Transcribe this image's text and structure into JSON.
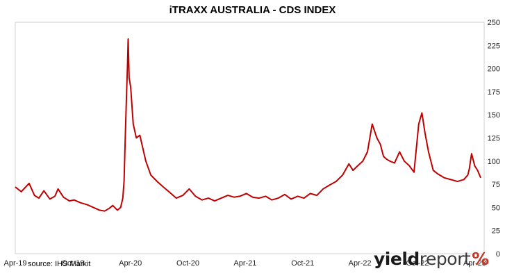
{
  "chart_data": {
    "type": "line",
    "title": "iTRAXX AUSTRALIA - CDS INDEX",
    "xlabel": "",
    "ylabel": "",
    "ylim": [
      0,
      250
    ],
    "y_ticks": [
      0,
      25,
      50,
      75,
      100,
      125,
      150,
      175,
      200,
      225,
      250
    ],
    "y_axis_side": "right",
    "x_range": [
      "2019-04-01",
      "2023-05-01"
    ],
    "x_ticks": [
      {
        "date": "2019-04-01",
        "label": "Apr-19"
      },
      {
        "date": "2019-10-01",
        "label": "Oct-19"
      },
      {
        "date": "2020-04-01",
        "label": "Apr-20"
      },
      {
        "date": "2020-10-01",
        "label": "Oct-20"
      },
      {
        "date": "2021-04-01",
        "label": "Apr-21"
      },
      {
        "date": "2021-10-01",
        "label": "Oct-21"
      },
      {
        "date": "2022-04-01",
        "label": "Apr-22"
      },
      {
        "date": "2022-10-01",
        "label": "Oct-22"
      },
      {
        "date": "2023-04-01",
        "label": "Apr-23"
      }
    ],
    "grid": false,
    "series_color": "#c00000",
    "series": [
      {
        "x": [
          "2019-04-01",
          "2019-04-20",
          "2019-05-15",
          "2019-06-01",
          "2019-06-15",
          "2019-07-01",
          "2019-07-20",
          "2019-08-05",
          "2019-08-15",
          "2019-09-01",
          "2019-09-20",
          "2019-10-05",
          "2019-10-25",
          "2019-11-15",
          "2019-12-05",
          "2019-12-25",
          "2020-01-10",
          "2020-01-25",
          "2020-02-05",
          "2020-02-20",
          "2020-03-01",
          "2020-03-08",
          "2020-03-12",
          "2020-03-16",
          "2020-03-20",
          "2020-03-23",
          "2020-03-25",
          "2020-03-28",
          "2020-04-02",
          "2020-04-10",
          "2020-04-20",
          "2020-05-01",
          "2020-05-20",
          "2020-06-05",
          "2020-06-25",
          "2020-07-15",
          "2020-08-05",
          "2020-08-25",
          "2020-09-15",
          "2020-10-05",
          "2020-10-25",
          "2020-11-15",
          "2020-12-05",
          "2020-12-25",
          "2021-01-15",
          "2021-02-05",
          "2021-02-25",
          "2021-03-15",
          "2021-04-05",
          "2021-04-25",
          "2021-05-15",
          "2021-06-05",
          "2021-06-25",
          "2021-07-15",
          "2021-08-05",
          "2021-08-25",
          "2021-09-15",
          "2021-10-05",
          "2021-10-25",
          "2021-11-15",
          "2021-12-05",
          "2021-12-25",
          "2022-01-15",
          "2022-02-05",
          "2022-02-25",
          "2022-03-10",
          "2022-03-25",
          "2022-04-10",
          "2022-04-25",
          "2022-05-10",
          "2022-05-25",
          "2022-06-05",
          "2022-06-15",
          "2022-06-25",
          "2022-07-05",
          "2022-07-20",
          "2022-08-05",
          "2022-08-20",
          "2022-09-05",
          "2022-09-20",
          "2022-10-05",
          "2022-10-15",
          "2022-10-25",
          "2022-11-05",
          "2022-11-20",
          "2022-12-05",
          "2022-12-25",
          "2023-01-15",
          "2023-02-05",
          "2023-02-25",
          "2023-03-10",
          "2023-03-15",
          "2023-03-22",
          "2023-04-01",
          "2023-04-10",
          "2023-04-20"
        ],
        "y": [
          72,
          67,
          76,
          63,
          60,
          68,
          59,
          62,
          70,
          61,
          57,
          58,
          55,
          53,
          50,
          47,
          46,
          49,
          52,
          47,
          50,
          60,
          78,
          130,
          175,
          205,
          232,
          190,
          180,
          140,
          125,
          128,
          100,
          85,
          78,
          72,
          66,
          60,
          63,
          70,
          62,
          58,
          60,
          57,
          60,
          63,
          61,
          62,
          65,
          61,
          60,
          62,
          58,
          60,
          64,
          59,
          62,
          60,
          65,
          63,
          70,
          74,
          78,
          85,
          97,
          90,
          95,
          100,
          110,
          140,
          125,
          118,
          105,
          102,
          100,
          98,
          110,
          100,
          95,
          88,
          140,
          152,
          130,
          110,
          90,
          86,
          82,
          80,
          78,
          80,
          85,
          92,
          108,
          95,
          90,
          82
        ]
      }
    ]
  },
  "source_note": "source: IHS Markit",
  "logo": {
    "part1": "yield",
    "part2": "report",
    "symbol": "%"
  }
}
